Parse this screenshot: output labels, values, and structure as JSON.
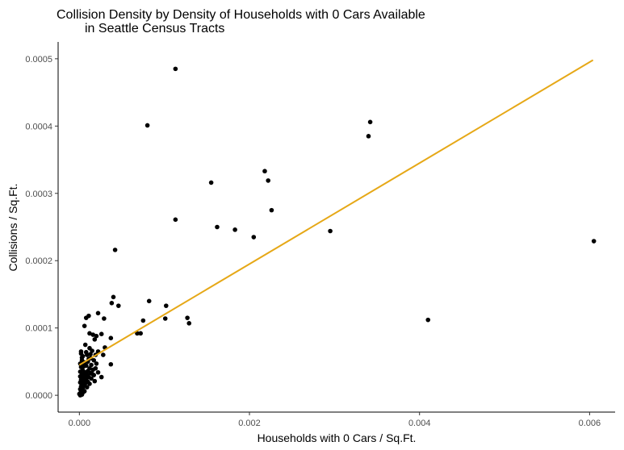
{
  "chart_data": {
    "type": "scatter",
    "title_line1": "Collision Density by Density of Households with 0 Cars Available",
    "title_line2": "in Seattle Census Tracts",
    "xlabel": "Households with 0 Cars / Sq.Ft.",
    "ylabel": "Collisions / Sq.Ft.",
    "xlim": [
      -0.00025,
      0.0063
    ],
    "ylim": [
      -2.5e-05,
      0.000525
    ],
    "x_ticks": [
      0,
      0.002,
      0.004,
      0.006
    ],
    "x_tick_labels": [
      "0.000",
      "0.002",
      "0.004",
      "0.006"
    ],
    "y_ticks": [
      0,
      0.0001,
      0.0002,
      0.0003,
      0.0004,
      0.0005
    ],
    "y_tick_labels": [
      "0.0000",
      "0.0001",
      "0.0002",
      "0.0003",
      "0.0004",
      "0.0005"
    ],
    "grid": false,
    "point_color": "#000000",
    "trend_color": "#E6A817",
    "trend_line": {
      "x": [
        0.0,
        0.00604
      ],
      "y": [
        4.5e-05,
        0.000498
      ]
    },
    "points": [
      [
        0.00113,
        0.000485
      ],
      [
        0.0008,
        0.000401
      ],
      [
        0.00342,
        0.000406
      ],
      [
        0.0034,
        0.000385
      ],
      [
        0.00155,
        0.000316
      ],
      [
        0.00218,
        0.000333
      ],
      [
        0.00222,
        0.000319
      ],
      [
        0.00226,
        0.000275
      ],
      [
        0.00113,
        0.000261
      ],
      [
        0.00162,
        0.00025
      ],
      [
        0.00183,
        0.000246
      ],
      [
        0.00205,
        0.000235
      ],
      [
        0.00295,
        0.000244
      ],
      [
        0.00605,
        0.000229
      ],
      [
        0.00042,
        0.000216
      ],
      [
        0.0041,
        0.000112
      ],
      [
        0.0004,
        0.000146
      ],
      [
        0.00038,
        0.000137
      ],
      [
        0.00046,
        0.000133
      ],
      [
        0.00082,
        0.00014
      ],
      [
        0.00102,
        0.000133
      ],
      [
        0.00127,
        0.000115
      ],
      [
        0.00129,
        0.000107
      ],
      [
        0.00101,
        0.000114
      ],
      [
        0.00075,
        0.000111
      ],
      [
        0.00068,
        9.2e-05
      ],
      [
        0.00072,
        9.2e-05
      ],
      [
        0.00022,
        0.000122
      ],
      [
        0.00029,
        0.000114
      ],
      [
        0.00011,
        0.000118
      ],
      [
        8e-05,
        0.000115
      ],
      [
        6e-05,
        0.000103
      ],
      [
        0.00012,
        9.2e-05
      ],
      [
        0.00016,
        9e-05
      ],
      [
        0.0002,
        8.8e-05
      ],
      [
        0.00026,
        9.1e-05
      ],
      [
        0.00037,
        8.5e-05
      ],
      [
        0.00018,
        8.3e-05
      ],
      [
        7e-05,
        7.5e-05
      ],
      [
        0.00012,
        7e-05
      ],
      [
        0.0003,
        7.1e-05
      ],
      [
        0.00022,
        6.5e-05
      ],
      [
        0.00015,
        6.6e-05
      ],
      [
        2e-05,
        6.5e-05
      ],
      [
        2e-05,
        6.2e-05
      ],
      [
        9e-05,
        6e-05
      ],
      [
        0.00013,
        5.5e-05
      ],
      [
        4e-05,
        5.8e-05
      ],
      [
        0.00019,
        6e-05
      ],
      [
        0.00028,
        6e-05
      ],
      [
        0.00017,
        5.2e-05
      ],
      [
        0.0001,
        5e-05
      ],
      [
        6e-05,
        4.9e-05
      ],
      [
        3e-05,
        5.2e-05
      ],
      [
        1e-05,
        4.7e-05
      ],
      [
        0.0002,
        4.7e-05
      ],
      [
        0.00037,
        4.6e-05
      ],
      [
        0.00014,
        4.5e-05
      ],
      [
        8e-05,
        4.4e-05
      ],
      [
        5e-05,
        4.3e-05
      ],
      [
        2e-05,
        4.2e-05
      ],
      [
        0.00012,
        4e-05
      ],
      [
        0.00016,
        3.8e-05
      ],
      [
        0.0001,
        3.6e-05
      ],
      [
        4e-05,
        3.7e-05
      ],
      [
        1e-05,
        3.5e-05
      ],
      [
        7e-05,
        3.4e-05
      ],
      [
        0.00022,
        3.4e-05
      ],
      [
        0.00013,
        3.3e-05
      ],
      [
        3e-05,
        3.1e-05
      ],
      [
        9e-05,
        3e-05
      ],
      [
        6e-05,
        2.9e-05
      ],
      [
        0.00017,
        3e-05
      ],
      [
        1e-05,
        2.8e-05
      ],
      [
        0.00011,
        2.7e-05
      ],
      [
        4e-05,
        2.6e-05
      ],
      [
        0.00014,
        2.5e-05
      ],
      [
        8e-05,
        2.4e-05
      ],
      [
        2e-05,
        2.3e-05
      ],
      [
        0.00026,
        2.7e-05
      ],
      [
        5e-05,
        2.1e-05
      ],
      [
        0.0001,
        2e-05
      ],
      [
        1e-05,
        1.9e-05
      ],
      [
        7e-05,
        1.8e-05
      ],
      [
        3e-05,
        1.6e-05
      ],
      [
        0.00012,
        1.7e-05
      ],
      [
        0.00018,
        2.1e-05
      ],
      [
        6e-05,
        1.5e-05
      ],
      [
        2e-05,
        1.3e-05
      ],
      [
        9e-05,
        1.2e-05
      ],
      [
        4e-05,
        1e-05
      ],
      [
        1e-05,
        9e-06
      ],
      [
        3e-05,
        7e-06
      ],
      [
        6e-05,
        6e-06
      ],
      [
        2e-05,
        5e-06
      ],
      [
        1e-05,
        3e-06
      ],
      [
        4e-05,
        4e-06
      ],
      [
        0.0,
        2e-06
      ],
      [
        3e-05,
        1e-06
      ],
      [
        1e-05,
        0.0
      ],
      [
        7e-05,
        2.7e-05
      ],
      [
        0.00015,
        3.2e-05
      ],
      [
        0.00019,
        4e-05
      ],
      [
        5e-05,
        4.6e-05
      ],
      [
        0.00011,
        5.4e-05
      ],
      [
        0.00013,
        6.1e-05
      ],
      [
        3e-05,
        5.6e-05
      ],
      [
        8e-05,
        6.4e-05
      ]
    ]
  }
}
